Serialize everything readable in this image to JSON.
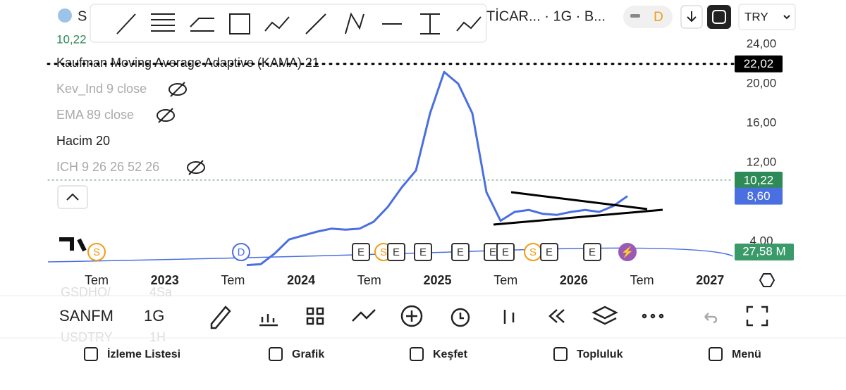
{
  "header": {
    "symbol": "S",
    "title": "TİCAR... · 1G · B...",
    "price_line": "10,22",
    "currency": "TRY",
    "interval_badge": "D"
  },
  "indicators": [
    "Kaufman Moving Average Adaptive (KAMA) 21",
    "Kev_Ind 9 close",
    "EMA 89 close",
    "Hacim 20",
    "ICH 9 26 26 52 26"
  ],
  "chart_data": {
    "type": "line",
    "series": [
      {
        "color": "#4a6fe0",
        "values": [
          1.6,
          1.7,
          2.8,
          4.2,
          4.6,
          5.0,
          5.3,
          5.2,
          5.3,
          6.0,
          7.5,
          9.5,
          11.2,
          17,
          21.2,
          20,
          17,
          9,
          6.1,
          7.0,
          7.2,
          6.8,
          6.7,
          7.0,
          7.2,
          7.0,
          7.6,
          8.6
        ]
      }
    ],
    "ylim": [
      1.5,
      24.93
    ],
    "yticks": [
      {
        "value": 24,
        "label": "24,00"
      },
      {
        "value": 20,
        "label": "20,00"
      },
      {
        "value": 16,
        "label": "16,00"
      },
      {
        "value": 12,
        "label": "12,00"
      },
      {
        "value": 4,
        "label": "4,00"
      }
    ],
    "grid": false,
    "xtick_labels": [
      "Tem",
      "2023",
      "Tem",
      "2024",
      "Tem",
      "2025",
      "Tem",
      "2026",
      "Tem",
      "2027"
    ],
    "price_labels": [
      {
        "value": 22.02,
        "label": "22,02",
        "color": "#000000"
      },
      {
        "value": 10.22,
        "label": "10,22",
        "color": "#2e8b57"
      },
      {
        "value": 8.6,
        "label": "8,60",
        "color": "#4a6fe0"
      }
    ],
    "volume_label": "27,58 M"
  },
  "events": [
    "S",
    "D",
    "E",
    "S",
    "E",
    "E",
    "E",
    "E",
    "E",
    "S",
    "E",
    "E",
    "⚡"
  ],
  "bottom": {
    "symbol": "SANFM",
    "interval": "1G",
    "ghost": [
      "GSDHO/",
      "4Sa",
      "USDTRY",
      "1H"
    ]
  },
  "nav": [
    "İzleme Listesi",
    "Grafik",
    "Keşfet",
    "Topluluk",
    "Menü"
  ]
}
